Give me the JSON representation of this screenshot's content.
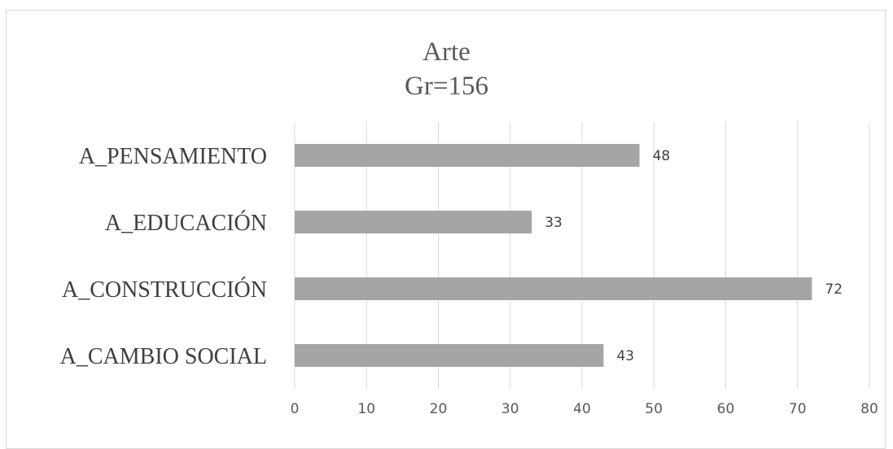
{
  "chart_data": {
    "type": "bar",
    "orientation": "horizontal",
    "title": "Arte",
    "subtitle": "Gr=156",
    "categories": [
      "A_PENSAMIENTO",
      "A_EDUCACIÓN",
      "A_CONSTRUCCIÓN",
      "A_CAMBIO SOCIAL"
    ],
    "values": [
      48,
      33,
      72,
      43
    ],
    "xlim": [
      0,
      80
    ],
    "xticks": [
      "0",
      "10",
      "20",
      "30",
      "40",
      "50",
      "60",
      "70",
      "80"
    ],
    "grid": true,
    "legend": "none",
    "bar_color": "#a5a5a5",
    "grid_color": "#d9d9d9"
  }
}
